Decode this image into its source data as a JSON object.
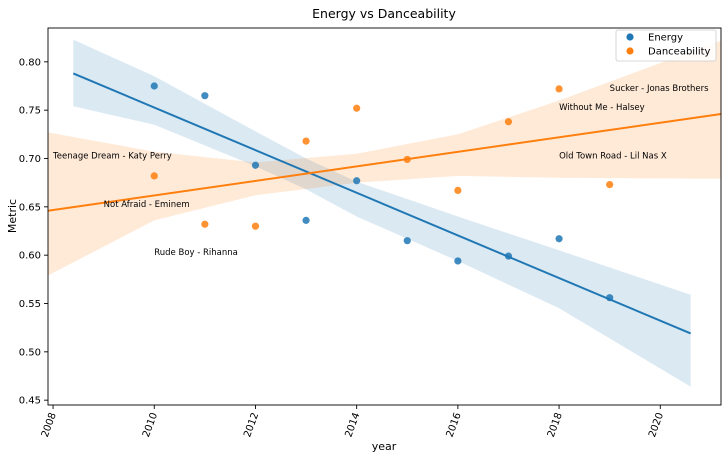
{
  "chart_data": {
    "type": "scatter",
    "title": "Energy vs Danceability",
    "xlabel": "year",
    "ylabel": "Metric",
    "xlim": [
      2007.9,
      2021.2
    ],
    "ylim": [
      0.445,
      0.835
    ],
    "xticks": [
      2008,
      2010,
      2012,
      2014,
      2016,
      2018,
      2020
    ],
    "yticks": [
      0.45,
      0.5,
      0.55,
      0.6,
      0.65,
      0.7,
      0.75,
      0.8
    ],
    "grid": false,
    "legend_position": "top-right",
    "series": [
      {
        "name": "Energy",
        "color": "#1f77b4",
        "points": [
          {
            "x": 2010,
            "y": 0.775
          },
          {
            "x": 2011,
            "y": 0.765
          },
          {
            "x": 2012,
            "y": 0.693
          },
          {
            "x": 2013,
            "y": 0.636
          },
          {
            "x": 2014,
            "y": 0.677
          },
          {
            "x": 2015,
            "y": 0.615
          },
          {
            "x": 2016,
            "y": 0.594
          },
          {
            "x": 2017,
            "y": 0.599
          },
          {
            "x": 2018,
            "y": 0.617
          },
          {
            "x": 2019,
            "y": 0.556
          }
        ],
        "fit": {
          "x": [
            2008.4,
            2020.6
          ],
          "y": [
            0.788,
            0.519
          ]
        },
        "band": {
          "x": [
            2008.4,
            2010,
            2012,
            2013,
            2014,
            2016,
            2018,
            2020.6
          ],
          "upper": [
            0.823,
            0.785,
            0.728,
            0.7,
            0.676,
            0.64,
            0.605,
            0.559
          ],
          "lower": [
            0.754,
            0.735,
            0.692,
            0.668,
            0.64,
            0.594,
            0.545,
            0.464
          ]
        }
      },
      {
        "name": "Danceability",
        "color": "#ff7f0e",
        "points": [
          {
            "x": 2010,
            "y": 0.682
          },
          {
            "x": 2011,
            "y": 0.632
          },
          {
            "x": 2012,
            "y": 0.63
          },
          {
            "x": 2013,
            "y": 0.718
          },
          {
            "x": 2014,
            "y": 0.752
          },
          {
            "x": 2015,
            "y": 0.699
          },
          {
            "x": 2016,
            "y": 0.667
          },
          {
            "x": 2017,
            "y": 0.738
          },
          {
            "x": 2018,
            "y": 0.772
          },
          {
            "x": 2019,
            "y": 0.673
          }
        ],
        "fit": {
          "x": [
            2007.9,
            2021.2
          ],
          "y": [
            0.646,
            0.746
          ]
        },
        "band": {
          "x": [
            2007.9,
            2010,
            2012,
            2014,
            2016,
            2018,
            2021.2
          ],
          "upper": [
            0.727,
            0.707,
            0.696,
            0.705,
            0.725,
            0.76,
            0.822
          ],
          "lower": [
            0.579,
            0.636,
            0.662,
            0.675,
            0.682,
            0.68,
            0.679
          ]
        }
      }
    ],
    "annotations": [
      {
        "text": "Teenage Dream - Katy Perry",
        "x": 2008.0,
        "y": 0.7
      },
      {
        "text": "Not Afraid - Eminem",
        "x": 2009.0,
        "y": 0.65
      },
      {
        "text": "Rude Boy - Rihanna",
        "x": 2010.0,
        "y": 0.6
      },
      {
        "text": "Old Town Road - Lil Nas X",
        "x": 2018.0,
        "y": 0.7
      },
      {
        "text": "Without Me - Halsey",
        "x": 2018.0,
        "y": 0.75
      },
      {
        "text": "Sucker - Jonas Brothers",
        "x": 2019.0,
        "y": 0.77
      }
    ]
  }
}
